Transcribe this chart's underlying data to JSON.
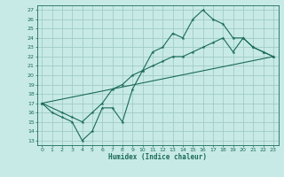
{
  "xlabel": "Humidex (Indice chaleur)",
  "bg_color": "#c8eae6",
  "grid_color": "#a0ccc8",
  "line_color": "#1a6b5a",
  "xlim": [
    -0.5,
    23.5
  ],
  "ylim": [
    12.5,
    27.5
  ],
  "xticks": [
    0,
    1,
    2,
    3,
    4,
    5,
    6,
    7,
    8,
    9,
    10,
    11,
    12,
    13,
    14,
    15,
    16,
    17,
    18,
    19,
    20,
    21,
    22,
    23
  ],
  "yticks": [
    13,
    14,
    15,
    16,
    17,
    18,
    19,
    20,
    21,
    22,
    23,
    24,
    25,
    26,
    27
  ],
  "line1_x": [
    0,
    1,
    2,
    3,
    4,
    5,
    6,
    7,
    8,
    9,
    10,
    11,
    12,
    13,
    14,
    15,
    16,
    17,
    18,
    19,
    20,
    21,
    22,
    23
  ],
  "line1_y": [
    17,
    16,
    15.5,
    15,
    13,
    14,
    16.5,
    16.5,
    15,
    18.5,
    20.5,
    22.5,
    23,
    24.5,
    24,
    26,
    27,
    26,
    25.5,
    24,
    24,
    23,
    22.5,
    22
  ],
  "line2_x": [
    0,
    2,
    3,
    4,
    5,
    6,
    7,
    8,
    9,
    10,
    11,
    12,
    13,
    14,
    15,
    16,
    17,
    18,
    19,
    20,
    21,
    22,
    23
  ],
  "line2_y": [
    17,
    16,
    15.5,
    15,
    16,
    17,
    18.5,
    19,
    20,
    20.5,
    21,
    21.5,
    22,
    22,
    22.5,
    23,
    23.5,
    24,
    22.5,
    24,
    23,
    22.5,
    22
  ],
  "line3_x": [
    0,
    23
  ],
  "line3_y": [
    17,
    22
  ]
}
